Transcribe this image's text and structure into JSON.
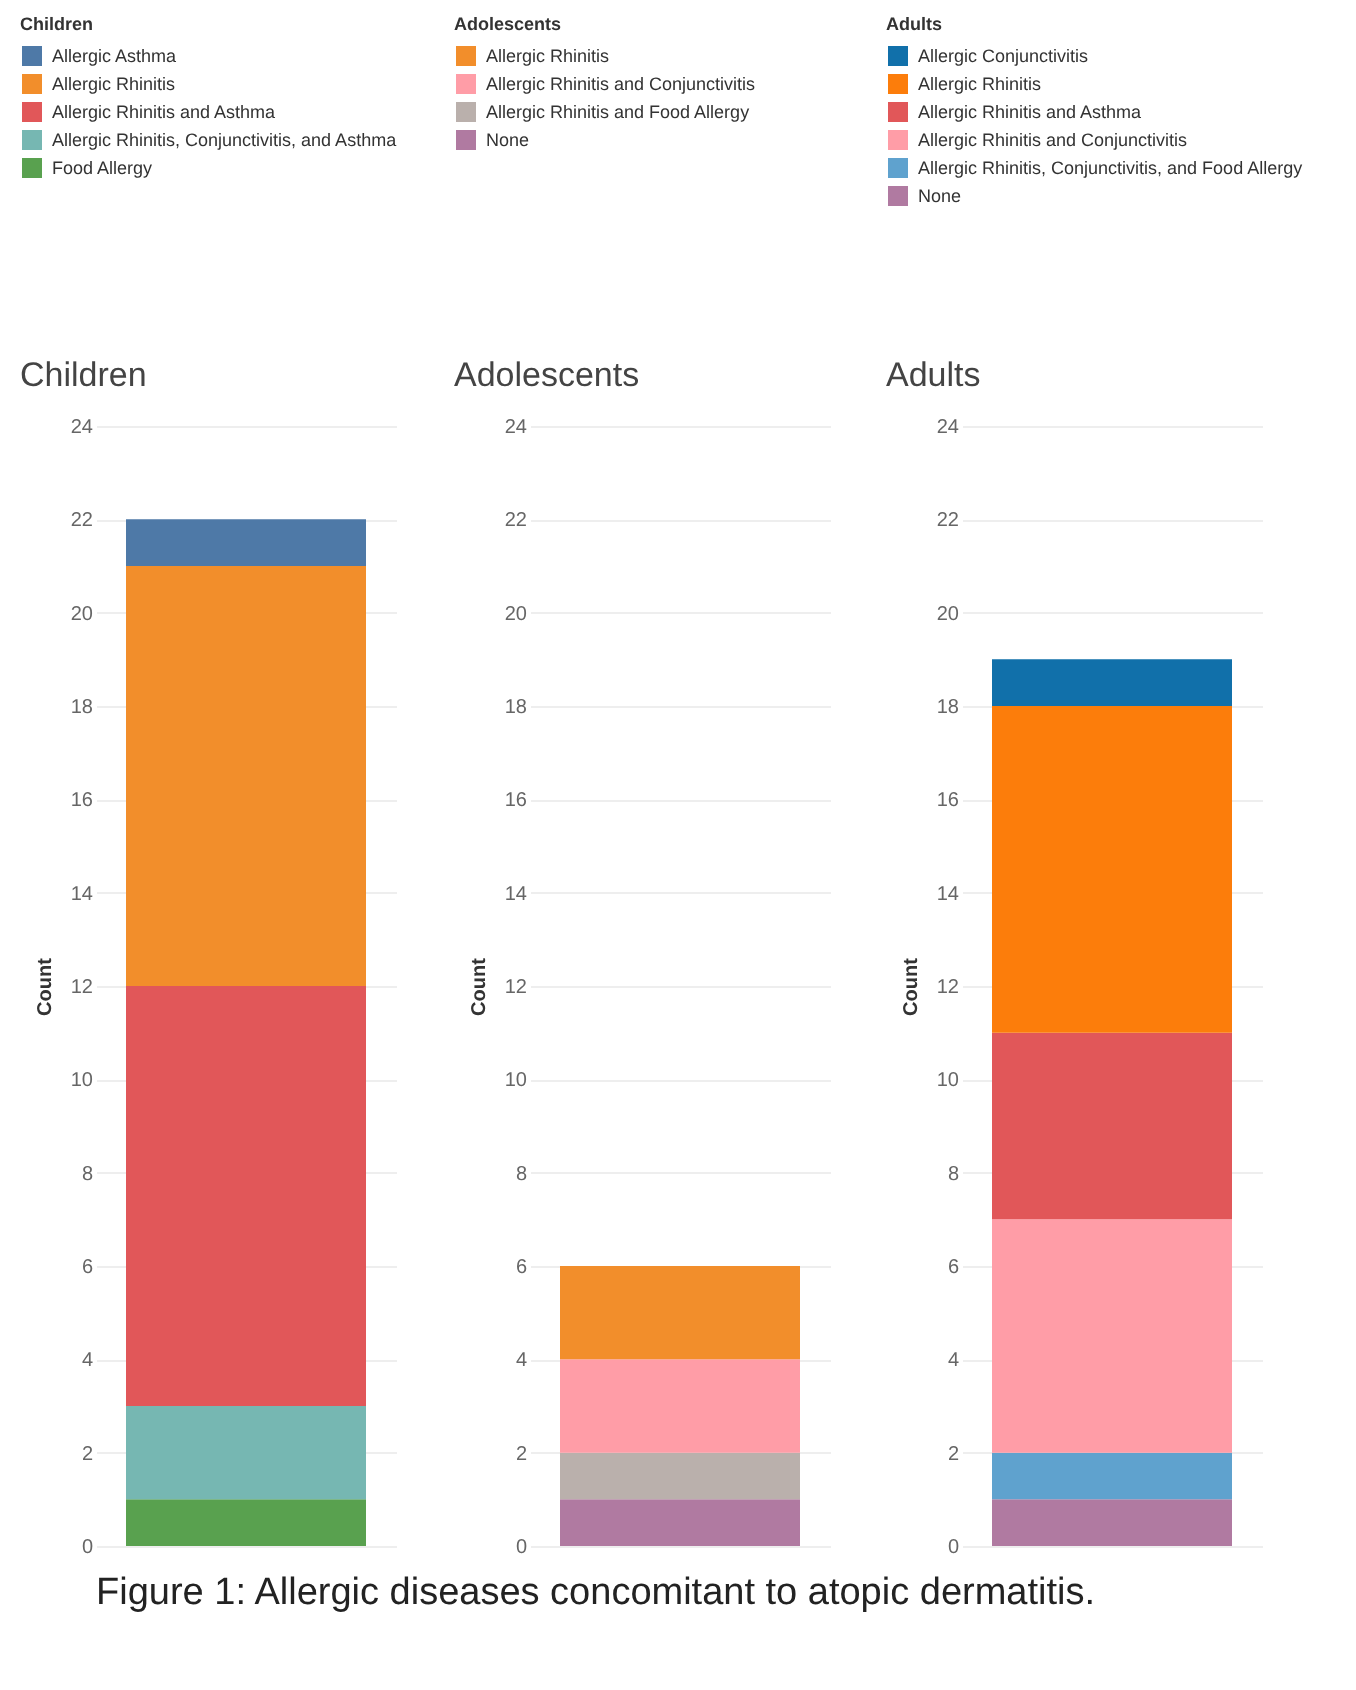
{
  "chart_data": [
    {
      "type": "bar",
      "title": "Children",
      "legend_title": "Children",
      "ylabel": "Count",
      "categories": [
        null
      ],
      "stacked": true,
      "ylim": [
        0,
        24
      ],
      "yticks": [
        0,
        2,
        4,
        6,
        8,
        10,
        12,
        14,
        16,
        18,
        20,
        22,
        24
      ],
      "grid": "y",
      "legend": "top",
      "tick_labels": "y",
      "annotations": [
        "Figure 1: Allergic diseases concomitant to atopic dermatitis."
      ],
      "series": [
        {
          "name": "Food Allergy",
          "color": "#59a14f",
          "values": [
            1
          ]
        },
        {
          "name": "Allergic Rhinitis, Conjunctivitis, and Asthma",
          "color": "#76b7b2",
          "values": [
            2
          ]
        },
        {
          "name": "Allergic Rhinitis and Asthma",
          "color": "#e15759",
          "values": [
            9
          ]
        },
        {
          "name": "Allergic Rhinitis",
          "color": "#f28e2b",
          "values": [
            9
          ]
        },
        {
          "name": "Allergic Asthma",
          "color": "#4e79a7",
          "values": [
            1
          ]
        }
      ]
    },
    {
      "type": "bar",
      "title": "Adolescents",
      "legend_title": "Adolescents",
      "ylabel": "Count",
      "categories": [
        null
      ],
      "stacked": true,
      "ylim": [
        0,
        24
      ],
      "yticks": [
        0,
        2,
        4,
        6,
        8,
        10,
        12,
        14,
        16,
        18,
        20,
        22,
        24
      ],
      "grid": "y",
      "legend": "top",
      "tick_labels": "y",
      "series": [
        {
          "name": "None",
          "color": "#b07aa1",
          "values": [
            1
          ]
        },
        {
          "name": "Allergic Rhinitis and Food Allergy",
          "color": "#bab0ac",
          "values": [
            1
          ]
        },
        {
          "name": "Allergic Rhinitis and Conjunctivitis",
          "color": "#ff9da7",
          "values": [
            2
          ]
        },
        {
          "name": "Allergic Rhinitis",
          "color": "#f28e2b",
          "values": [
            2
          ]
        }
      ]
    },
    {
      "type": "bar",
      "title": "Adults",
      "legend_title": "Adults",
      "ylabel": "Count",
      "categories": [
        null
      ],
      "stacked": true,
      "ylim": [
        0,
        24
      ],
      "yticks": [
        0,
        2,
        4,
        6,
        8,
        10,
        12,
        14,
        16,
        18,
        20,
        22,
        24
      ],
      "grid": "y",
      "legend": "top",
      "tick_labels": "y",
      "series": [
        {
          "name": "None",
          "color": "#b07aa1",
          "values": [
            1
          ]
        },
        {
          "name": "Allergic Rhinitis, Conjunctivitis, and Food Allergy",
          "color": "#5fa2ce",
          "values": [
            1
          ]
        },
        {
          "name": "Allergic Rhinitis and Conjunctivitis",
          "color": "#ff9da7",
          "values": [
            5
          ]
        },
        {
          "name": "Allergic Rhinitis and Asthma",
          "color": "#e15759",
          "values": [
            4
          ]
        },
        {
          "name": "Allergic Rhinitis",
          "color": "#fc7d0b",
          "values": [
            7
          ]
        },
        {
          "name": "Allergic Conjunctivitis",
          "color": "#1170aa",
          "values": [
            1
          ]
        }
      ]
    }
  ]
}
